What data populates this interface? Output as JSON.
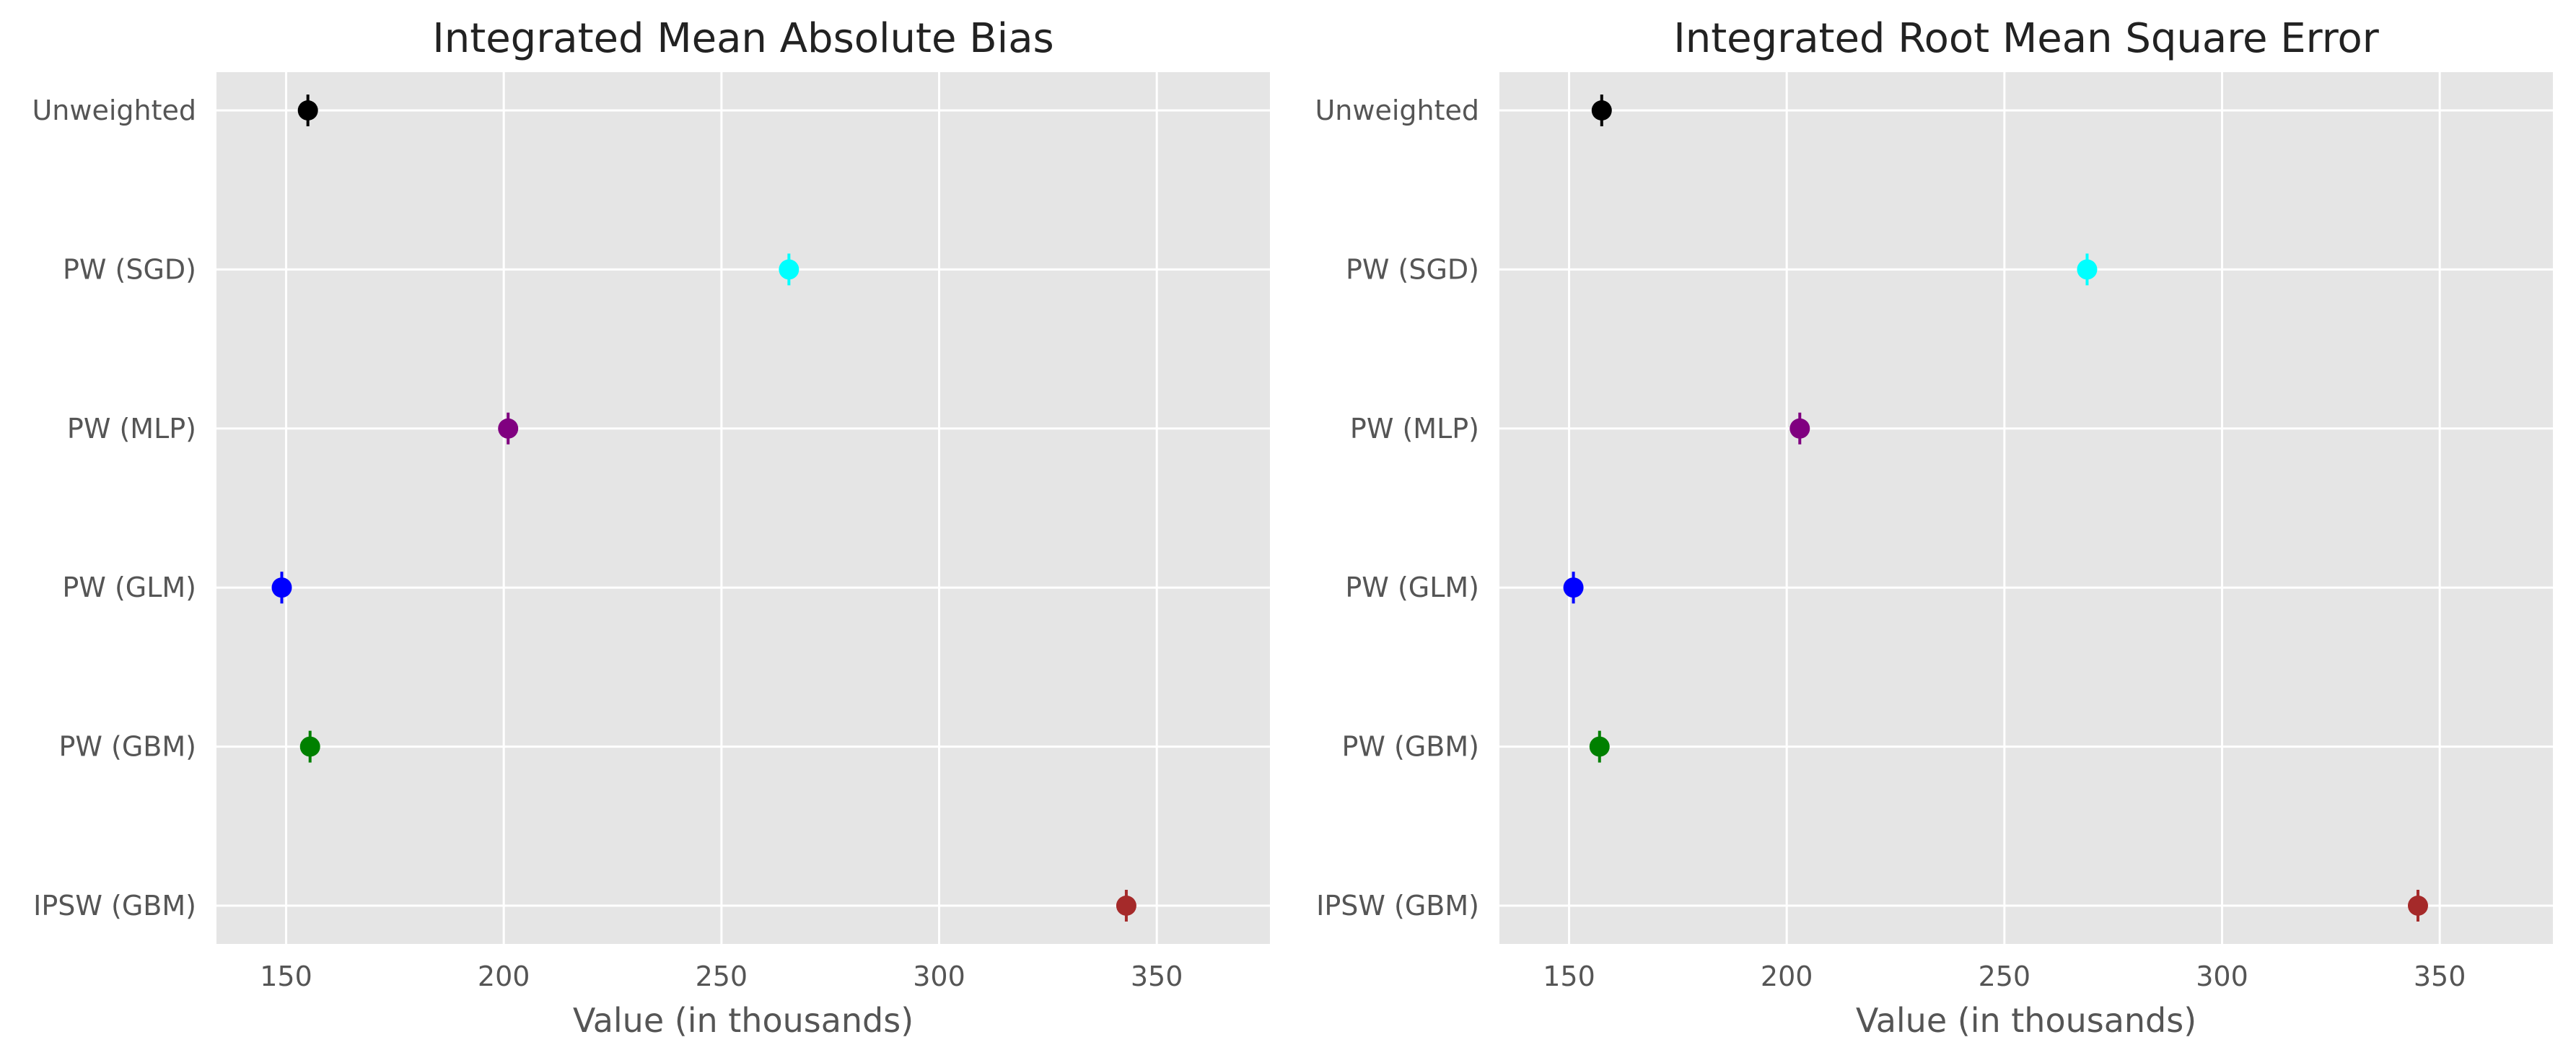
{
  "chart_data": [
    {
      "type": "scatter",
      "title": "Integrated Mean Absolute Bias",
      "xlabel": "Value (in thousands)",
      "ylabel": "",
      "xlim": [
        134,
        376
      ],
      "xticks": [
        150,
        200,
        250,
        300,
        350
      ],
      "grid": true,
      "categories": [
        "Unweighted",
        "PW (SGD)",
        "PW (MLP)",
        "PW (GLM)",
        "PW (GBM)",
        "IPSW (GBM)"
      ],
      "values": [
        155,
        265.5,
        201,
        149,
        155.5,
        343
      ],
      "errors": [
        1.5,
        1.5,
        1.5,
        1.5,
        1.5,
        1.5
      ],
      "colors": [
        "#000000",
        "#00ffff",
        "#800080",
        "#0000ff",
        "#008000",
        "#a52a2a"
      ]
    },
    {
      "type": "scatter",
      "title": "Integrated Root Mean Square Error",
      "xlabel": "Value (in thousands)",
      "ylabel": "",
      "xlim": [
        134,
        376
      ],
      "xticks": [
        150,
        200,
        250,
        300,
        350
      ],
      "grid": true,
      "categories": [
        "Unweighted",
        "PW (SGD)",
        "PW (MLP)",
        "PW (GLM)",
        "PW (GBM)",
        "IPSW (GBM)"
      ],
      "values": [
        157.5,
        269,
        203,
        151,
        157,
        345
      ],
      "errors": [
        1.5,
        1.5,
        1.5,
        1.5,
        1.5,
        1.5
      ],
      "colors": [
        "#000000",
        "#00ffff",
        "#800080",
        "#0000ff",
        "#008000",
        "#a52a2a"
      ]
    }
  ]
}
